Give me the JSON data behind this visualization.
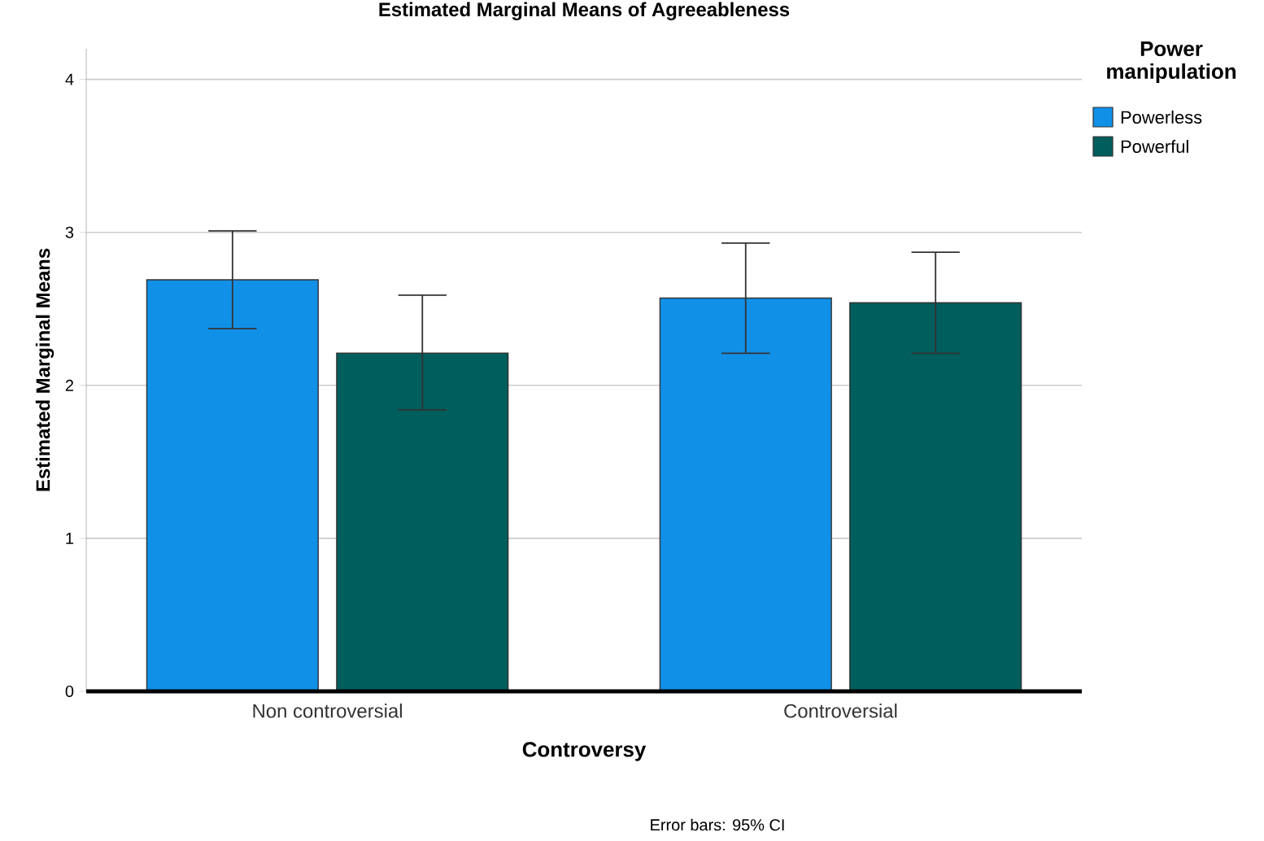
{
  "chart_data": {
    "type": "bar",
    "title": "Estimated Marginal Means of Agreeableness",
    "xlabel": "Controversy",
    "ylabel": "Estimated Marginal Means",
    "legend_title": "Power manipulation",
    "categories": [
      "Non controversial",
      "Controversial"
    ],
    "series": [
      {
        "name": "Powerless",
        "color": "#1190e8",
        "values": [
          2.69,
          2.57
        ],
        "errors": [
          [
            2.37,
            3.01
          ],
          [
            2.21,
            2.93
          ]
        ]
      },
      {
        "name": "Powerful",
        "color": "#005e5d",
        "values": [
          2.21,
          2.54
        ],
        "errors": [
          [
            1.84,
            2.59
          ],
          [
            2.21,
            2.87
          ]
        ]
      }
    ],
    "ylim": [
      0,
      4.2
    ],
    "yticks": [
      0,
      1,
      2,
      3,
      4
    ],
    "grid": "y",
    "legend": "top right",
    "annotations": [
      "Error bars: 95% CI"
    ]
  }
}
